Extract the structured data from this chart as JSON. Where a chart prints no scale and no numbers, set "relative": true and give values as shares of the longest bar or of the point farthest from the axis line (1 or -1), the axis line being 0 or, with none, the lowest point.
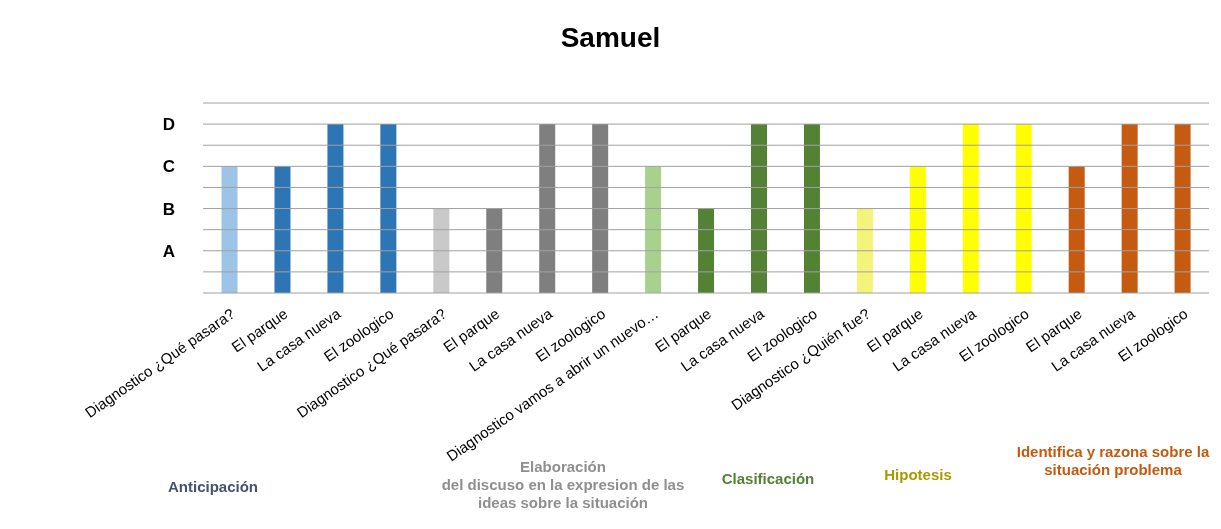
{
  "chart_data": {
    "type": "bar",
    "title": "Samuel",
    "relative": true,
    "categories": [
      "Diagnostico ¿Qué pasara?",
      "El parque",
      "La casa nueva",
      "El zoologico",
      "Diagnostico ¿Qué pasara?",
      "El parque",
      "La casa nueva",
      "El zoologico",
      "Diagnostico vamos a abrir un nuevo…",
      "El parque",
      "La casa nueva",
      "El zoologico",
      "Diagnostico ¿Quién fue?",
      "El parque",
      "La casa nueva",
      "El zoologico",
      "El parque",
      "La casa nueva",
      "El zoologico"
    ],
    "values": [
      0.75,
      0.75,
      1,
      1,
      0.5,
      0.5,
      1,
      1,
      0.75,
      0.5,
      1,
      1,
      0.5,
      0.75,
      1,
      1,
      0.75,
      1,
      1
    ],
    "colors": [
      "#9dc3e6",
      "#2e75b6",
      "#2e75b6",
      "#2e75b6",
      "#c9c9c9",
      "#7f7f7f",
      "#7f7f7f",
      "#7f7f7f",
      "#a9d18e",
      "#548235",
      "#548235",
      "#548235",
      "#f4f47a",
      "#ffff00",
      "#ffff00",
      "#ffff00",
      "#c55a11",
      "#c55a11",
      "#c55a11"
    ],
    "ref_lines": [
      {
        "axis": "y",
        "value": 0.125,
        "label": null
      },
      {
        "axis": "y",
        "value": 0.25,
        "label": "A"
      },
      {
        "axis": "y",
        "value": 0.375,
        "label": null
      },
      {
        "axis": "y",
        "value": 0.5,
        "label": "B"
      },
      {
        "axis": "y",
        "value": 0.625,
        "label": null
      },
      {
        "axis": "y",
        "value": 0.75,
        "label": "C"
      },
      {
        "axis": "y",
        "value": 0.875,
        "label": null
      },
      {
        "axis": "y",
        "value": 1,
        "label": "D"
      },
      {
        "axis": "y",
        "value": 1.125,
        "label": null
      }
    ],
    "annotations": [
      "Anticipación",
      "Elaboración\ndel discuso en la expresion de las ideas sobre la situación",
      "Clasificación",
      "Hipotesis",
      "Identifica y razona sobre la situación problema"
    ]
  }
}
